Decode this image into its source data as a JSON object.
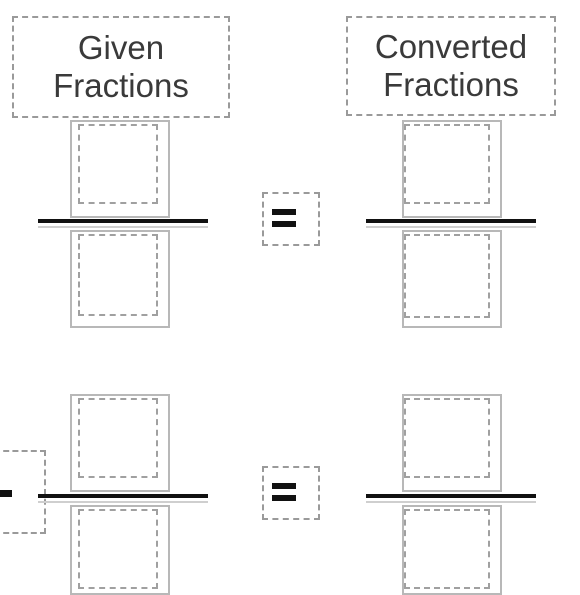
{
  "headers": {
    "given_line1": "Given",
    "given_line2": "Fractions",
    "converted_line1": "Converted",
    "converted_line2": "Fractions"
  },
  "rows": [
    {
      "operator_left": "",
      "equals": "="
    },
    {
      "operator_left": "-",
      "equals": "="
    }
  ],
  "colors": {
    "line": "#111111",
    "dashed_border": "#9a9a9a",
    "box_border": "#b8b8b8"
  }
}
